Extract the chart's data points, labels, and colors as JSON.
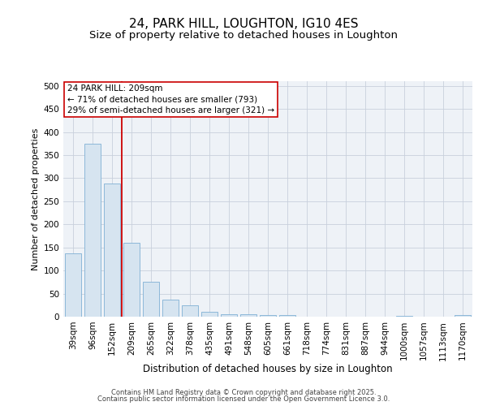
{
  "title1": "24, PARK HILL, LOUGHTON, IG10 4ES",
  "title2": "Size of property relative to detached houses in Loughton",
  "xlabel": "Distribution of detached houses by size in Loughton",
  "ylabel": "Number of detached properties",
  "categories": [
    "39sqm",
    "96sqm",
    "152sqm",
    "209sqm",
    "265sqm",
    "322sqm",
    "378sqm",
    "435sqm",
    "491sqm",
    "548sqm",
    "605sqm",
    "661sqm",
    "718sqm",
    "774sqm",
    "831sqm",
    "887sqm",
    "944sqm",
    "1000sqm",
    "1057sqm",
    "1113sqm",
    "1170sqm"
  ],
  "values": [
    137,
    375,
    288,
    160,
    75,
    37,
    25,
    10,
    6,
    6,
    3,
    3,
    0,
    0,
    0,
    0,
    0,
    2,
    0,
    0,
    3
  ],
  "bar_color": "#d6e4f0",
  "bar_edge_color": "#7fb0d4",
  "red_line_index": 3,
  "annotation_line1": "24 PARK HILL: 209sqm",
  "annotation_line2": "← 71% of detached houses are smaller (793)",
  "annotation_line3": "29% of semi-detached houses are larger (321) →",
  "annotation_box_color": "#ffffff",
  "annotation_box_edge": "#cc0000",
  "red_line_color": "#cc0000",
  "ylim": [
    0,
    510
  ],
  "yticks": [
    0,
    50,
    100,
    150,
    200,
    250,
    300,
    350,
    400,
    450,
    500
  ],
  "grid_color": "#c8d0dc",
  "bg_color": "#eef2f7",
  "footer1": "Contains HM Land Registry data © Crown copyright and database right 2025.",
  "footer2": "Contains public sector information licensed under the Open Government Licence 3.0.",
  "title1_fontsize": 11,
  "title2_fontsize": 9.5,
  "xlabel_fontsize": 8.5,
  "ylabel_fontsize": 8,
  "tick_fontsize": 7.5,
  "annotation_fontsize": 7.5,
  "footer_fontsize": 6
}
